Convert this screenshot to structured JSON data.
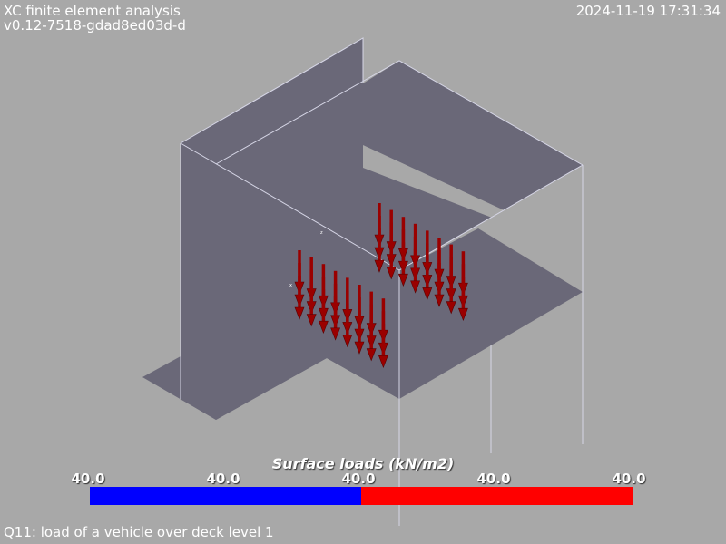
{
  "header": {
    "title": "XC finite element analysis",
    "version": "v0.12-7518-gdad8ed03d-d",
    "timestamp": "2024-11-19 17:31:34"
  },
  "scalar_bar": {
    "title": "Surface loads (kN/m2)",
    "ticks": [
      "40.0",
      "40.0",
      "40.0",
      "40.0",
      "40.0"
    ],
    "colors": [
      "#0000ff",
      "#ff0000"
    ]
  },
  "caption": "Q11: load of a vehicle over deck level 1",
  "scene": {
    "surface_color": "#6a6878",
    "edge_color": "#d6d6e6",
    "arrow_color": "#9a0000"
  }
}
